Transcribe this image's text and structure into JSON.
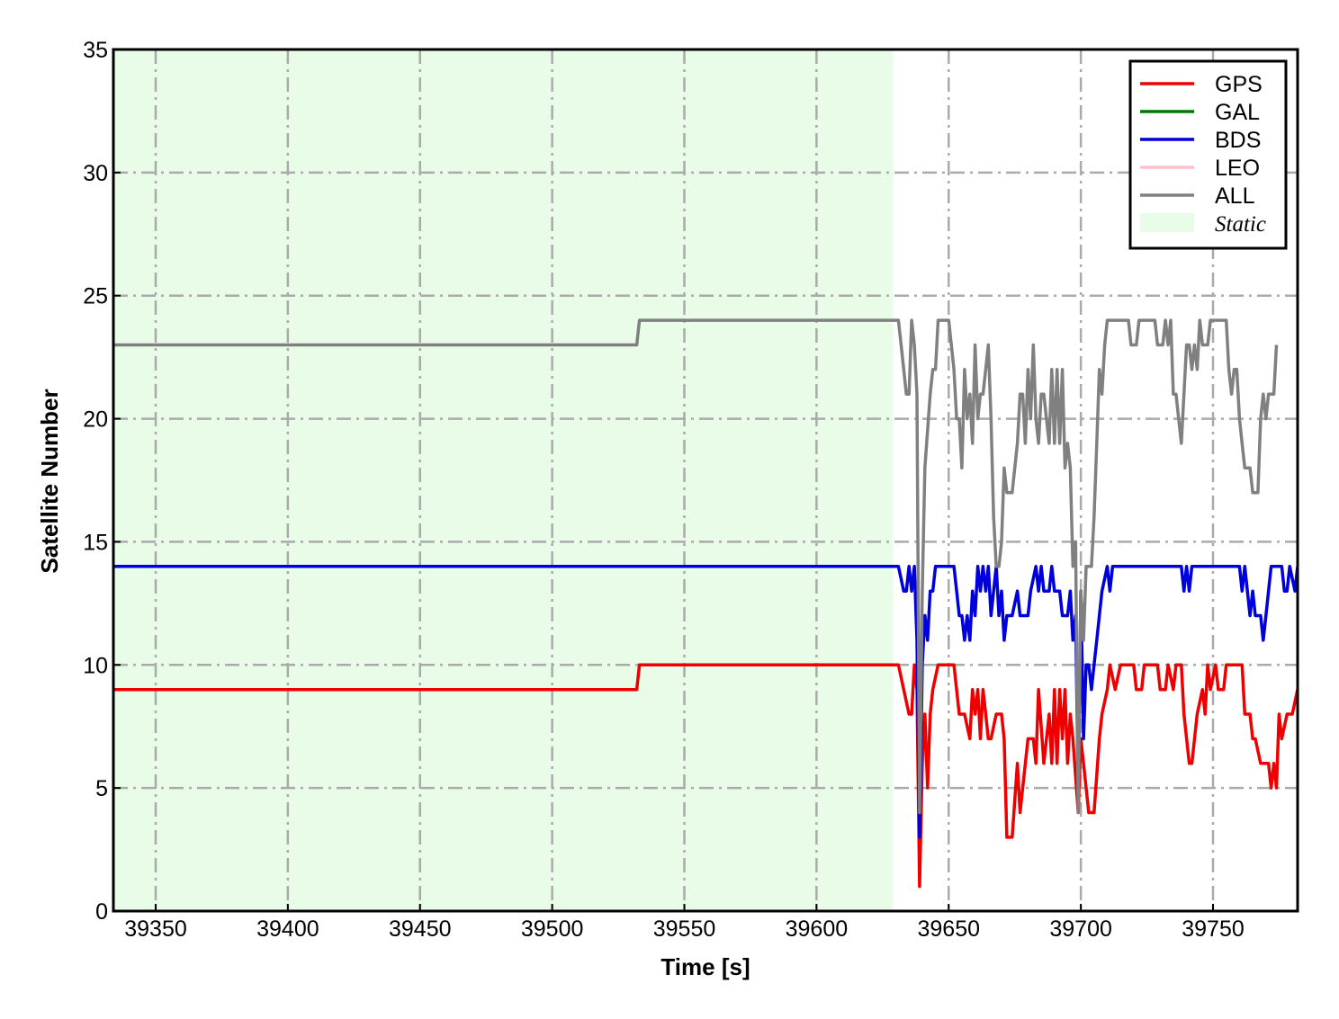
{
  "chart_data": {
    "type": "line",
    "xlabel": "Time [s]",
    "ylabel": "Satellite Number",
    "xlim": [
      39334,
      39782
    ],
    "ylim": [
      0,
      35
    ],
    "xticks": [
      39350,
      39400,
      39450,
      39500,
      39550,
      39600,
      39650,
      39700,
      39750
    ],
    "yticks": [
      0,
      5,
      10,
      15,
      20,
      25,
      30,
      35
    ],
    "grid": true,
    "legend_position": "top-right",
    "shaded_region": {
      "label": "Static",
      "x": [
        39334,
        39629
      ],
      "color": "#e8fce8"
    },
    "series": [
      {
        "name": "GPS",
        "color": "#ee0000",
        "points": [
          [
            39334,
            9
          ],
          [
            39532,
            9
          ],
          [
            39533,
            10
          ],
          [
            39631,
            10
          ],
          [
            39633,
            9
          ],
          [
            39635,
            8
          ],
          [
            39636,
            8
          ],
          [
            39637,
            10
          ],
          [
            39638,
            9
          ],
          [
            39639,
            1
          ],
          [
            39640,
            6
          ],
          [
            39641,
            8
          ],
          [
            39642,
            5
          ],
          [
            39643,
            8
          ],
          [
            39644,
            9
          ],
          [
            39646,
            10
          ],
          [
            39650,
            10
          ],
          [
            39652,
            10
          ],
          [
            39654,
            8
          ],
          [
            39656,
            8
          ],
          [
            39658,
            7
          ],
          [
            39659,
            9
          ],
          [
            39660,
            8
          ],
          [
            39661,
            9
          ],
          [
            39662,
            7
          ],
          [
            39663,
            9
          ],
          [
            39664,
            8
          ],
          [
            39665,
            7
          ],
          [
            39666,
            7
          ],
          [
            39668,
            8
          ],
          [
            39670,
            8
          ],
          [
            39671,
            7
          ],
          [
            39672,
            3
          ],
          [
            39674,
            3
          ],
          [
            39676,
            6
          ],
          [
            39677,
            4
          ],
          [
            39678,
            5
          ],
          [
            39680,
            7
          ],
          [
            39682,
            7
          ],
          [
            39683,
            6
          ],
          [
            39684,
            9
          ],
          [
            39686,
            6
          ],
          [
            39688,
            8
          ],
          [
            39689,
            6
          ],
          [
            39690,
            9
          ],
          [
            39691,
            6
          ],
          [
            39692,
            9
          ],
          [
            39693,
            7
          ],
          [
            39694,
            9
          ],
          [
            39695,
            6
          ],
          [
            39696,
            8
          ],
          [
            39697,
            7
          ],
          [
            39699,
            4
          ],
          [
            39700,
            7
          ],
          [
            39701,
            6
          ],
          [
            39702,
            5
          ],
          [
            39703,
            4
          ],
          [
            39705,
            4
          ],
          [
            39707,
            7
          ],
          [
            39708,
            8
          ],
          [
            39710,
            9
          ],
          [
            39711,
            10
          ],
          [
            39713,
            9
          ],
          [
            39715,
            10
          ],
          [
            39720,
            10
          ],
          [
            39721,
            9
          ],
          [
            39723,
            9
          ],
          [
            39724,
            10
          ],
          [
            39729,
            10
          ],
          [
            39730,
            9
          ],
          [
            39732,
            9
          ],
          [
            39733,
            10
          ],
          [
            39735,
            9
          ],
          [
            39736,
            10
          ],
          [
            39738,
            10
          ],
          [
            39739,
            8
          ],
          [
            39741,
            6
          ],
          [
            39742,
            6
          ],
          [
            39744,
            8
          ],
          [
            39746,
            9
          ],
          [
            39747,
            8
          ],
          [
            39748,
            10
          ],
          [
            39749,
            9
          ],
          [
            39751,
            10
          ],
          [
            39752,
            9
          ],
          [
            39754,
            9
          ],
          [
            39755,
            10
          ],
          [
            39761,
            10
          ],
          [
            39762,
            8
          ],
          [
            39764,
            8
          ],
          [
            39765,
            7
          ],
          [
            39766,
            7
          ],
          [
            39768,
            6
          ],
          [
            39769,
            6
          ],
          [
            39771,
            6
          ],
          [
            39772,
            5
          ],
          [
            39773,
            6
          ],
          [
            39774,
            5
          ],
          [
            39775,
            8
          ],
          [
            39776,
            7
          ],
          [
            39778,
            8
          ],
          [
            39780,
            8
          ],
          [
            39782,
            9
          ]
        ]
      },
      {
        "name": "GAL",
        "color": "#007700",
        "points": []
      },
      {
        "name": "BDS",
        "color": "#0000dd",
        "points": [
          [
            39334,
            14
          ],
          [
            39631,
            14
          ],
          [
            39633,
            13
          ],
          [
            39634,
            13
          ],
          [
            39635,
            14
          ],
          [
            39636,
            13
          ],
          [
            39637,
            14
          ],
          [
            39638,
            11
          ],
          [
            39639,
            3
          ],
          [
            39640,
            10
          ],
          [
            39641,
            12
          ],
          [
            39642,
            11
          ],
          [
            39643,
            13
          ],
          [
            39644,
            13
          ],
          [
            39645,
            14
          ],
          [
            39652,
            14
          ],
          [
            39653,
            13
          ],
          [
            39654,
            12
          ],
          [
            39655,
            12
          ],
          [
            39656,
            11
          ],
          [
            39657,
            12
          ],
          [
            39658,
            11
          ],
          [
            39659,
            13
          ],
          [
            39660,
            12
          ],
          [
            39661,
            14
          ],
          [
            39662,
            13
          ],
          [
            39663,
            14
          ],
          [
            39664,
            13
          ],
          [
            39665,
            14
          ],
          [
            39666,
            12
          ],
          [
            39667,
            13
          ],
          [
            39668,
            14
          ],
          [
            39669,
            12
          ],
          [
            39670,
            13
          ],
          [
            39671,
            11
          ],
          [
            39672,
            12
          ],
          [
            39674,
            12
          ],
          [
            39676,
            13
          ],
          [
            39677,
            12
          ],
          [
            39678,
            12
          ],
          [
            39680,
            12
          ],
          [
            39681,
            13
          ],
          [
            39683,
            14
          ],
          [
            39684,
            13
          ],
          [
            39685,
            14
          ],
          [
            39686,
            13
          ],
          [
            39688,
            13
          ],
          [
            39689,
            14
          ],
          [
            39690,
            13
          ],
          [
            39692,
            13
          ],
          [
            39693,
            12
          ],
          [
            39695,
            12
          ],
          [
            39696,
            13
          ],
          [
            39697,
            11
          ],
          [
            39698,
            12
          ],
          [
            39699,
            5
          ],
          [
            39700,
            13
          ],
          [
            39701,
            7
          ],
          [
            39702,
            10
          ],
          [
            39703,
            10
          ],
          [
            39704,
            9
          ],
          [
            39705,
            10
          ],
          [
            39706,
            11
          ],
          [
            39707,
            12
          ],
          [
            39708,
            13
          ],
          [
            39710,
            14
          ],
          [
            39711,
            13
          ],
          [
            39712,
            14
          ],
          [
            39738,
            14
          ],
          [
            39739,
            13
          ],
          [
            39740,
            14
          ],
          [
            39741,
            13
          ],
          [
            39742,
            14
          ],
          [
            39760,
            14
          ],
          [
            39761,
            13
          ],
          [
            39762,
            14
          ],
          [
            39764,
            12
          ],
          [
            39765,
            13
          ],
          [
            39766,
            12
          ],
          [
            39768,
            12
          ],
          [
            39769,
            11
          ],
          [
            39770,
            12
          ],
          [
            39771,
            13
          ],
          [
            39772,
            14
          ],
          [
            39774,
            14
          ],
          [
            39776,
            14
          ],
          [
            39777,
            13
          ],
          [
            39778,
            13
          ],
          [
            39779,
            14
          ],
          [
            39781,
            13
          ],
          [
            39782,
            14
          ]
        ]
      },
      {
        "name": "LEO",
        "color": "#ffc0cb",
        "points": []
      },
      {
        "name": "ALL",
        "color": "#808080",
        "points": [
          [
            39334,
            23
          ],
          [
            39532,
            23
          ],
          [
            39533,
            24
          ],
          [
            39631,
            24
          ],
          [
            39632,
            23
          ],
          [
            39634,
            21
          ],
          [
            39635,
            21
          ],
          [
            39636,
            24
          ],
          [
            39637,
            23
          ],
          [
            39638,
            21
          ],
          [
            39639,
            4
          ],
          [
            39640,
            13
          ],
          [
            39641,
            18
          ],
          [
            39643,
            21
          ],
          [
            39644,
            22
          ],
          [
            39645,
            22
          ],
          [
            39646,
            24
          ],
          [
            39650,
            24
          ],
          [
            39652,
            22
          ],
          [
            39653,
            20
          ],
          [
            39654,
            20
          ],
          [
            39655,
            18
          ],
          [
            39656,
            22
          ],
          [
            39657,
            20
          ],
          [
            39658,
            21
          ],
          [
            39659,
            19
          ],
          [
            39660,
            23
          ],
          [
            39661,
            20
          ],
          [
            39662,
            21
          ],
          [
            39663,
            21
          ],
          [
            39664,
            22
          ],
          [
            39665,
            23
          ],
          [
            39666,
            20
          ],
          [
            39667,
            16
          ],
          [
            39668,
            14
          ],
          [
            39669,
            14
          ],
          [
            39670,
            15
          ],
          [
            39671,
            18
          ],
          [
            39672,
            17
          ],
          [
            39674,
            17
          ],
          [
            39675,
            18
          ],
          [
            39676,
            19
          ],
          [
            39677,
            21
          ],
          [
            39678,
            21
          ],
          [
            39679,
            19
          ],
          [
            39680,
            22
          ],
          [
            39681,
            20
          ],
          [
            39682,
            23
          ],
          [
            39683,
            20
          ],
          [
            39684,
            19
          ],
          [
            39685,
            21
          ],
          [
            39686,
            21
          ],
          [
            39687,
            20
          ],
          [
            39688,
            19
          ],
          [
            39689,
            22
          ],
          [
            39690,
            19
          ],
          [
            39691,
            22
          ],
          [
            39692,
            19
          ],
          [
            39693,
            22
          ],
          [
            39694,
            18
          ],
          [
            39695,
            19
          ],
          [
            39696,
            18
          ],
          [
            39697,
            14
          ],
          [
            39698,
            15
          ],
          [
            39699,
            4
          ],
          [
            39700,
            13
          ],
          [
            39701,
            11
          ],
          [
            39702,
            14
          ],
          [
            39704,
            14
          ],
          [
            39705,
            16
          ],
          [
            39706,
            19
          ],
          [
            39707,
            22
          ],
          [
            39708,
            21
          ],
          [
            39709,
            23
          ],
          [
            39710,
            24
          ],
          [
            39718,
            24
          ],
          [
            39719,
            23
          ],
          [
            39721,
            23
          ],
          [
            39722,
            24
          ],
          [
            39728,
            24
          ],
          [
            39729,
            23
          ],
          [
            39731,
            23
          ],
          [
            39732,
            24
          ],
          [
            39733,
            23
          ],
          [
            39734,
            24
          ],
          [
            39735,
            21
          ],
          [
            39736,
            21
          ],
          [
            39737,
            20
          ],
          [
            39738,
            19
          ],
          [
            39739,
            21
          ],
          [
            39740,
            23
          ],
          [
            39741,
            23
          ],
          [
            39742,
            22
          ],
          [
            39743,
            23
          ],
          [
            39744,
            22
          ],
          [
            39745,
            24
          ],
          [
            39746,
            23
          ],
          [
            39748,
            23
          ],
          [
            39749,
            24
          ],
          [
            39755,
            24
          ],
          [
            39756,
            22
          ],
          [
            39757,
            21
          ],
          [
            39758,
            22
          ],
          [
            39759,
            22
          ],
          [
            39760,
            20
          ],
          [
            39761,
            19
          ],
          [
            39762,
            18
          ],
          [
            39764,
            18
          ],
          [
            39765,
            17
          ],
          [
            39767,
            17
          ],
          [
            39768,
            20
          ],
          [
            39769,
            21
          ],
          [
            39770,
            20
          ],
          [
            39771,
            21
          ],
          [
            39773,
            21
          ],
          [
            39774,
            23
          ]
        ]
      }
    ]
  },
  "legend": {
    "static_label": "Static"
  }
}
